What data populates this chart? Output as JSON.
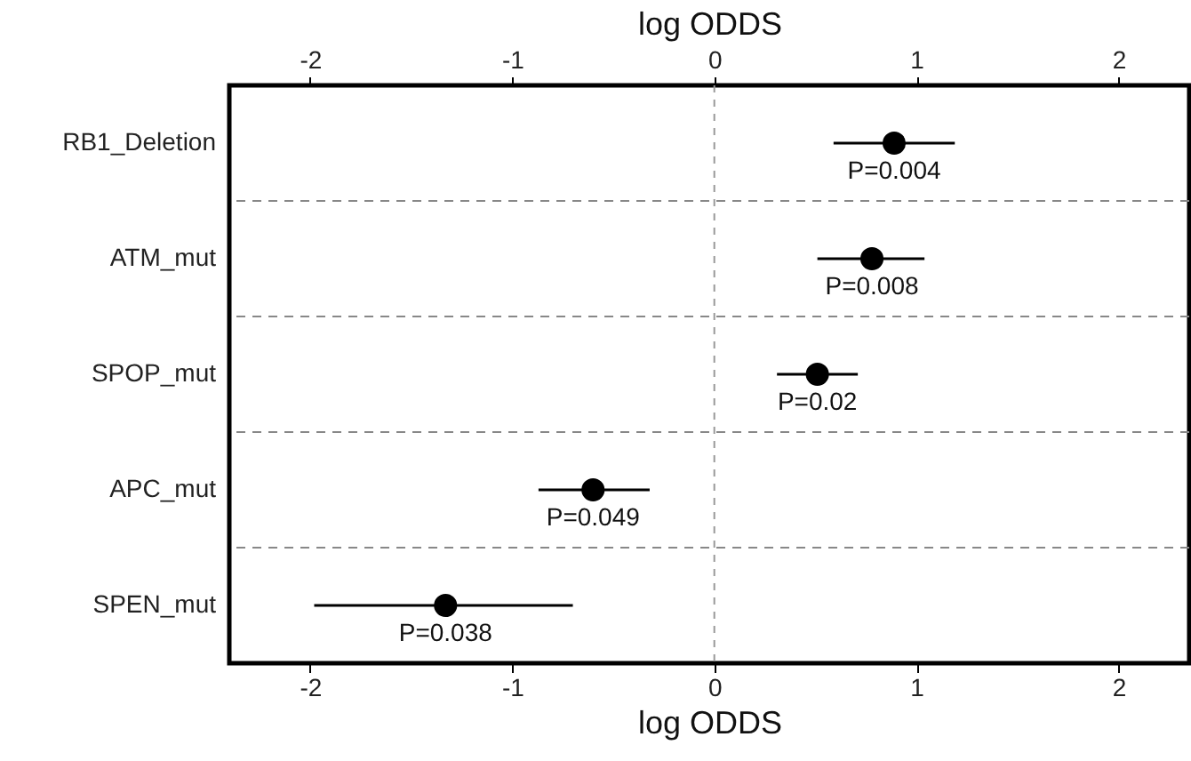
{
  "chart_data": {
    "type": "scatter",
    "orientation": "horizontal",
    "xlabel": "log ODDS",
    "x2label": "log ODDS",
    "categories": [
      "RB1_Deletion",
      "ATM_mut",
      "SPOP_mut",
      "APC_mut",
      "SPEN_mut"
    ],
    "values": [
      0.89,
      0.78,
      0.51,
      -0.6,
      -1.33
    ],
    "errors": [
      [
        0.59,
        1.19
      ],
      [
        0.51,
        1.04
      ],
      [
        0.31,
        0.71
      ],
      [
        -0.87,
        -0.32
      ],
      [
        -1.98,
        -0.7
      ]
    ],
    "color": "#000000",
    "marker": "circle",
    "xlim": [
      -2.4,
      2.35
    ],
    "xticks": [
      -2,
      -1,
      0,
      1,
      2
    ],
    "x2lim": [
      -2.4,
      2.35
    ],
    "x2ticks": [
      -2,
      -1,
      0,
      1,
      2
    ],
    "grid": "y",
    "ref_lines": [
      {
        "axis": "x",
        "value": 0,
        "color": "#999999",
        "line_style": "dashed"
      }
    ],
    "annotations": [
      {
        "text": "P=0.004",
        "x": 0.89,
        "y": "RB1_Deletion"
      },
      {
        "text": "P=0.008",
        "x": 0.78,
        "y": "ATM_mut"
      },
      {
        "text": "P=0.02",
        "x": 0.51,
        "y": "SPOP_mut"
      },
      {
        "text": "P=0.049",
        "x": -0.6,
        "y": "APC_mut"
      },
      {
        "text": "P=0.038",
        "x": -1.33,
        "y": "SPEN_mut"
      }
    ]
  }
}
